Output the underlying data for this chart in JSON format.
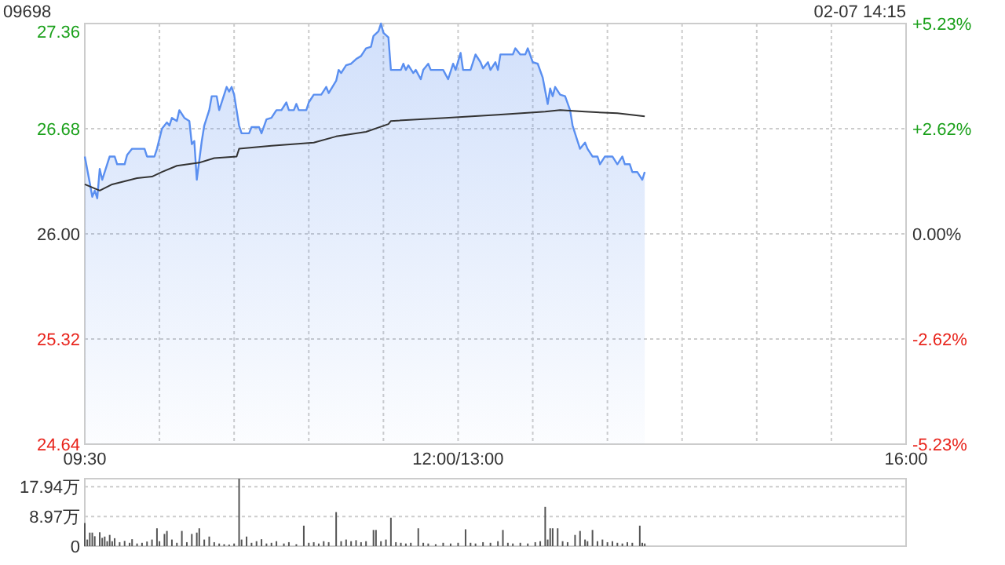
{
  "chart_data": [
    {
      "type": "area",
      "title": "09698",
      "annotations": [
        "02-07 14:15"
      ],
      "grid": true,
      "categories": [
        "09:30",
        null,
        null,
        null,
        null,
        null,
        null,
        null,
        null,
        null,
        null,
        null,
        null,
        null,
        null,
        null,
        null,
        null,
        null,
        null,
        null,
        null,
        null,
        null,
        null,
        null,
        null,
        null,
        null,
        null,
        null,
        null,
        null,
        null,
        null,
        null,
        null,
        null,
        null,
        null,
        null,
        null,
        null,
        null,
        null,
        null,
        null,
        null,
        null,
        null,
        null,
        null,
        null,
        null,
        null,
        null,
        null,
        null,
        null,
        null,
        null,
        null,
        null,
        null,
        null,
        null,
        null,
        null,
        null,
        null,
        null,
        null,
        null,
        null,
        null,
        null,
        null,
        null,
        null,
        null,
        null,
        null,
        null,
        null,
        null,
        null,
        null,
        null,
        null,
        null,
        null,
        null,
        null,
        null,
        null,
        null,
        null,
        null,
        null,
        null,
        null,
        null,
        null,
        null,
        null,
        null,
        null,
        null,
        null,
        null,
        null,
        null,
        null,
        null,
        null,
        null,
        null,
        null,
        null,
        null,
        null,
        null,
        null,
        null,
        null,
        null,
        null,
        null,
        null,
        null,
        null,
        null,
        null,
        null,
        null,
        null,
        null,
        null,
        null,
        null,
        null,
        null,
        null,
        null,
        null,
        null,
        null,
        null,
        null,
        null,
        "12:00/13:00",
        null,
        null,
        null,
        null,
        null,
        null,
        null,
        null,
        null,
        null,
        null,
        null,
        null,
        null,
        null,
        null,
        null,
        null,
        null,
        null,
        null,
        null,
        null,
        null,
        null,
        null,
        null,
        null,
        null,
        null,
        null,
        null,
        null,
        null,
        null,
        null,
        null,
        null,
        null,
        null,
        null,
        null,
        null,
        null,
        null,
        null,
        null,
        null,
        null,
        null,
        null,
        null,
        null,
        null,
        null,
        null,
        null,
        null,
        null,
        null,
        null,
        null,
        null,
        null,
        null,
        null,
        null,
        null,
        null,
        null,
        null,
        null,
        null,
        null,
        null,
        null,
        null,
        null,
        null,
        null,
        null,
        null,
        null,
        null,
        null,
        null,
        null,
        null,
        null,
        null,
        null,
        null,
        null,
        null,
        null,
        null,
        null,
        null,
        null,
        null,
        null,
        null,
        null,
        null,
        null,
        null,
        null,
        null,
        null,
        null,
        null,
        null,
        null,
        null,
        null,
        null,
        null,
        null,
        null,
        null,
        null,
        null,
        null,
        null,
        null,
        null,
        null,
        null,
        null,
        null,
        null,
        null,
        null,
        null,
        null,
        null,
        null,
        null,
        null,
        null,
        null,
        null,
        null,
        null,
        null,
        null,
        null,
        null,
        null,
        null,
        null,
        null,
        null,
        null,
        null,
        null,
        null,
        null,
        null,
        null,
        null,
        null,
        null,
        null,
        null,
        null,
        null,
        null,
        null,
        null,
        null,
        null,
        null,
        null,
        null,
        null,
        null,
        null,
        null,
        "16:00"
      ],
      "ylim": [
        24.64,
        27.36
      ],
      "yticks": [
        {
          "value": 24.64,
          "label": "24.64"
        },
        {
          "value": 25.32,
          "label": "25.32"
        },
        {
          "value": 26,
          "label": "26.00"
        },
        {
          "value": 26.68,
          "label": "26.68"
        },
        {
          "value": 27.36,
          "label": "27.36"
        }
      ],
      "y2lim": [
        -5.23,
        5.23
      ],
      "y2ticks": [
        {
          "value": -5.23,
          "label": "-5.23%"
        },
        {
          "value": -2.62,
          "label": "-2.62%"
        },
        {
          "value": 0,
          "label": "0.00%"
        },
        {
          "value": 2.62,
          "label": "+2.62%"
        },
        {
          "value": 5.23,
          "label": "+5.23%"
        }
      ],
      "series": [
        {
          "color": "#5a8ff0",
          "values": [
            26.5,
            null,
            26.33,
            26.24,
            26.28,
            26.23,
            26.42,
            26.35,
            null,
            null,
            26.5,
            null,
            26.5,
            26.45,
            null,
            null,
            26.45,
            26.51,
            null,
            26.55,
            null,
            null,
            null,
            null,
            26.55,
            26.5,
            null,
            null,
            26.5,
            26.55,
            null,
            26.68,
            null,
            26.72,
            26.7,
            26.75,
            null,
            26.73,
            26.8,
            null,
            26.75,
            null,
            26.73,
            26.58,
            26.6,
            26.35,
            null,
            26.6,
            26.7,
            null,
            26.8,
            26.89,
            null,
            26.89,
            26.8,
            null,
            26.9,
            26.95,
            26.92,
            26.95,
            26.9,
            null,
            26.7,
            26.65,
            null,
            null,
            26.65,
            26.69,
            null,
            null,
            26.69,
            26.65,
            null,
            26.74,
            null,
            26.75,
            null,
            26.8,
            null,
            26.8,
            null,
            26.85,
            26.8,
            null,
            26.8,
            26.84,
            26.8,
            null,
            null,
            26.8,
            26.85,
            null,
            26.9,
            null,
            null,
            26.9,
            null,
            26.95,
            26.91,
            null,
            null,
            26.99,
            27.06,
            27.04,
            null,
            27.09,
            null,
            27.1,
            null,
            27.13,
            null,
            27.15,
            null,
            27.2,
            null,
            27.21,
            27.28,
            null,
            27.31,
            27.36,
            27.3,
            null,
            27.27,
            27.06,
            null,
            null,
            null,
            27.06,
            27.1,
            27.06,
            27.09,
            null,
            27.04,
            27.06,
            null,
            27.0,
            27.06,
            null,
            27.1,
            27.06,
            null,
            null,
            null,
            null,
            27.06,
            null,
            27.0,
            null,
            27.1,
            27.06,
            null,
            27.17,
            27.06,
            null,
            null,
            27.06,
            null,
            27.16,
            null,
            27.11,
            27.07,
            null,
            27.11,
            27.06,
            null,
            27.11,
            27.06,
            27.16,
            null,
            null,
            null,
            null,
            27.16,
            27.2,
            null,
            27.16,
            null,
            27.16,
            27.2,
            null,
            27.11,
            null,
            27.1,
            null,
            27.01,
            null,
            26.84,
            26.94,
            26.89,
            26.95,
            null,
            26.9,
            null,
            26.89,
            null,
            26.8,
            26.7,
            null,
            26.6,
            26.55,
            null,
            26.59,
            26.55,
            null,
            26.5,
            null,
            26.5,
            26.45,
            null,
            26.5,
            null,
            null,
            26.5,
            null,
            26.45,
            null,
            26.5,
            26.45,
            null,
            26.45,
            26.4,
            null,
            26.4,
            null,
            26.35,
            26.4,
            null,
            null,
            null,
            null,
            null,
            null,
            null,
            null,
            null,
            null,
            null,
            null,
            null,
            null,
            null,
            null,
            null,
            null,
            null,
            null,
            null,
            null,
            null,
            null,
            null,
            null,
            null,
            null,
            null,
            null,
            null,
            null,
            null,
            null,
            null,
            null,
            null,
            null,
            null,
            null,
            null,
            null,
            null,
            null,
            null,
            null,
            null,
            null,
            null,
            null,
            null,
            null,
            null,
            null,
            null,
            null,
            null,
            null,
            null,
            null,
            null,
            null,
            null,
            null,
            null,
            null,
            null,
            null,
            null,
            null,
            null,
            null,
            null,
            null,
            null,
            null,
            null,
            null,
            null,
            null,
            null,
            null,
            null,
            null,
            null,
            null,
            null,
            null,
            null,
            null,
            null,
            null,
            null,
            null,
            null,
            null,
            null,
            null,
            null,
            null,
            null,
            null,
            null,
            null,
            null
          ]
        },
        {
          "type": "line",
          "color": "#333333",
          "values": [
            26.32,
            null,
            null,
            null,
            null,
            null,
            26.28,
            null,
            null,
            null,
            null,
            26.32,
            null,
            null,
            null,
            null,
            null,
            null,
            null,
            null,
            null,
            26.36,
            null,
            null,
            null,
            null,
            null,
            26.37,
            null,
            null,
            null,
            26.4,
            null,
            null,
            null,
            null,
            null,
            26.44,
            null,
            null,
            null,
            null,
            null,
            null,
            null,
            null,
            26.46,
            null,
            null,
            null,
            null,
            null,
            26.49,
            null,
            null,
            null,
            null,
            null,
            null,
            null,
            null,
            26.5,
            26.55,
            null,
            null,
            null,
            null,
            null,
            null,
            null,
            null,
            null,
            null,
            null,
            null,
            26.57,
            null,
            null,
            null,
            null,
            null,
            null,
            null,
            null,
            null,
            null,
            null,
            null,
            null,
            null,
            null,
            null,
            26.59,
            null,
            null,
            null,
            null,
            null,
            null,
            null,
            null,
            26.63,
            null,
            null,
            null,
            null,
            null,
            null,
            null,
            null,
            null,
            null,
            null,
            26.66,
            null,
            null,
            null,
            null,
            null,
            null,
            null,
            null,
            26.71,
            26.73,
            null,
            null,
            null,
            null,
            null,
            null,
            null,
            null,
            null,
            null,
            null,
            null,
            null,
            null,
            null,
            null,
            null,
            null,
            null,
            null,
            null,
            26.75,
            null,
            null,
            null,
            null,
            null,
            null,
            null,
            null,
            null,
            null,
            null,
            null,
            null,
            null,
            null,
            null,
            null,
            null,
            null,
            null,
            26.77,
            null,
            null,
            null,
            null,
            null,
            null,
            null,
            null,
            null,
            null,
            null,
            null,
            null,
            null,
            null,
            null,
            null,
            null,
            26.79,
            null,
            null,
            null,
            null,
            null,
            26.8,
            null,
            null,
            null,
            null,
            null,
            null,
            null,
            null,
            null,
            26.79,
            null,
            null,
            null,
            null,
            null,
            null,
            null,
            null,
            null,
            null,
            null,
            null,
            26.78,
            null,
            null,
            null,
            null,
            null,
            null,
            null,
            null,
            null,
            null,
            26.76,
            null,
            null,
            null,
            null,
            null,
            null,
            null,
            null,
            null,
            null,
            null,
            null,
            null,
            null,
            null,
            null,
            null,
            null,
            null,
            null,
            null,
            null,
            null,
            null,
            null,
            null,
            null,
            null,
            null,
            null,
            null,
            null,
            null,
            null,
            null,
            null,
            null,
            null,
            null,
            null,
            null,
            null,
            null,
            null,
            null,
            null,
            null,
            null,
            null,
            null,
            null,
            null,
            null,
            null,
            null,
            null,
            null,
            null,
            null,
            null,
            null,
            null,
            null,
            null,
            null,
            null,
            null,
            null,
            null,
            null,
            null,
            null,
            null,
            null,
            null,
            null,
            null,
            null,
            null,
            null,
            null,
            null,
            null,
            null,
            null,
            null,
            null,
            null,
            null,
            null,
            null,
            null,
            null,
            null,
            null,
            null,
            null,
            null,
            null,
            null,
            null,
            null,
            null,
            null,
            null
          ]
        }
      ]
    },
    {
      "type": "bar",
      "grid": "y",
      "tick_labels": "y",
      "color": "#555555",
      "categories": [
        null,
        null,
        null,
        null,
        null,
        null,
        null,
        null,
        null,
        null,
        null,
        null,
        null,
        null,
        null,
        null,
        null,
        null,
        null,
        null,
        null,
        null,
        null,
        null,
        null,
        null,
        null,
        null,
        null,
        null,
        null,
        null,
        null,
        null,
        null,
        null,
        null,
        null,
        null,
        null,
        null,
        null,
        null,
        null,
        null,
        null,
        null,
        null,
        null,
        null,
        null,
        null,
        null,
        null,
        null,
        null,
        null,
        null,
        null,
        null,
        null,
        null,
        null,
        null,
        null,
        null,
        null,
        null,
        null,
        null,
        null,
        null,
        null,
        null,
        null,
        null,
        null,
        null,
        null,
        null,
        null,
        null,
        null,
        null,
        null,
        null,
        null,
        null,
        null,
        null,
        null,
        null,
        null,
        null,
        null,
        null,
        null,
        null,
        null,
        null,
        null,
        null,
        null,
        null,
        null,
        null,
        null,
        null,
        null,
        null,
        null,
        null,
        null,
        null,
        null,
        null,
        null,
        null,
        null,
        null,
        null,
        null,
        null,
        null,
        null,
        null,
        null,
        null,
        null,
        null,
        null,
        null,
        null,
        null,
        null,
        null,
        null,
        null,
        null,
        null,
        null,
        null,
        null,
        null,
        null,
        null,
        null,
        null,
        null,
        null,
        null,
        null,
        null,
        null,
        null,
        null,
        null,
        null,
        null,
        null,
        null,
        null,
        null,
        null,
        null,
        null,
        null,
        null,
        null,
        null,
        null,
        null,
        null,
        null,
        null,
        null,
        null,
        null,
        null,
        null,
        null,
        null,
        null,
        null,
        null,
        null,
        null,
        null,
        null,
        null,
        null,
        null,
        null,
        null,
        null,
        null,
        null,
        null,
        null,
        null,
        null,
        null,
        null,
        null,
        null,
        null,
        null,
        null,
        null,
        null,
        null,
        null,
        null,
        null,
        null,
        null,
        null,
        null,
        null,
        null,
        null,
        null,
        null,
        null,
        null,
        null,
        null,
        null,
        null,
        null,
        null,
        null,
        null,
        null,
        null,
        null,
        null,
        null,
        null,
        null,
        null,
        null,
        null,
        null,
        null,
        null,
        null,
        null,
        null,
        null,
        null,
        null,
        null,
        null,
        null,
        null,
        null,
        null,
        null,
        null,
        null,
        null,
        null,
        null,
        null,
        null,
        null,
        null,
        null,
        null,
        null,
        null,
        null,
        null,
        null,
        null,
        null,
        null,
        null,
        null,
        null,
        null,
        null,
        null,
        null,
        null,
        null,
        null,
        null,
        null,
        null,
        null,
        null,
        null,
        null,
        null,
        null,
        null,
        null,
        null,
        null,
        null,
        null,
        null,
        null,
        null,
        null,
        null,
        null,
        null,
        null,
        null,
        null,
        null,
        null,
        null,
        null,
        null,
        null,
        null,
        null,
        null,
        null,
        null,
        null,
        null,
        null,
        null,
        null,
        null,
        null
      ],
      "ylim": [
        0,
        20.4
      ],
      "yticks": [
        0,
        {
          "value": 8.97,
          "label": "8.97万"
        },
        {
          "value": 17.94,
          "label": "17.94万"
        }
      ],
      "values": [
        7.0,
        2.0,
        4.1,
        4.1,
        3.0,
        null,
        4.2,
        2.5,
        2.9,
        1.5,
        3.4,
        1.5,
        2.4,
        null,
        1.2,
        null,
        1.6,
        null,
        1.0,
        2.1,
        null,
        0.8,
        null,
        1.0,
        null,
        1.4,
        null,
        2.0,
        null,
        5.4,
        1.5,
        null,
        3.7,
        4.6,
        null,
        2.0,
        null,
        1.0,
        null,
        4.6,
        null,
        1.2,
        null,
        3.7,
        null,
        4.1,
        5.4,
        null,
        2.0,
        null,
        2.9,
        null,
        1.2,
        null,
        0.8,
        null,
        0.6,
        null,
        0.5,
        null,
        0.8,
        null,
        20.4,
        2.0,
        null,
        2.9,
        null,
        1.0,
        null,
        1.5,
        null,
        2.1,
        null,
        0.8,
        null,
        1.0,
        null,
        1.5,
        null,
        null,
        0.8,
        null,
        1.2,
        null,
        null,
        0.6,
        null,
        null,
        6.2,
        null,
        1.0,
        null,
        1.2,
        null,
        0.8,
        null,
        1.5,
        null,
        1.2,
        null,
        null,
        10.3,
        null,
        1.5,
        null,
        2.0,
        null,
        1.5,
        null,
        1.8,
        null,
        1.2,
        null,
        1.5,
        null,
        null,
        4.9,
        4.9,
        null,
        1.5,
        null,
        2.0,
        null,
        8.6,
        null,
        1.2,
        null,
        1.0,
        null,
        0.8,
        null,
        1.0,
        null,
        null,
        5.4,
        null,
        1.0,
        null,
        0.8,
        null,
        null,
        0.6,
        null,
        null,
        1.0,
        null,
        null,
        0.8,
        null,
        null,
        1.0,
        null,
        null,
        5.1,
        null,
        1.0,
        null,
        0.8,
        null,
        null,
        1.2,
        null,
        null,
        1.0,
        null,
        null,
        1.5,
        null,
        4.9,
        null,
        1.0,
        null,
        0.8,
        null,
        null,
        1.0,
        null,
        null,
        0.8,
        null,
        null,
        1.2,
        null,
        1.5,
        null,
        11.9,
        2.0,
        5.4,
        5.4,
        null,
        5.4,
        null,
        1.5,
        null,
        1.2,
        null,
        null,
        3.4,
        null,
        4.6,
        null,
        2.0,
        1.5,
        null,
        4.9,
        null,
        1.5,
        null,
        2.0,
        null,
        1.2,
        null,
        1.5,
        null,
        1.0,
        null,
        0.8,
        null,
        1.2,
        null,
        1.0,
        null,
        null,
        6.2,
        1.0,
        0.8,
        null,
        null,
        null,
        null,
        null,
        null,
        null,
        null,
        null,
        null,
        null,
        null,
        null,
        null,
        null,
        null,
        null,
        null,
        null,
        null,
        null,
        null,
        null,
        null,
        null,
        null,
        null,
        null,
        null,
        null,
        null,
        null,
        null,
        null,
        null,
        null,
        null,
        null,
        null,
        null,
        null,
        null,
        null,
        null,
        null,
        null,
        null,
        null,
        null,
        null,
        null,
        null,
        null,
        null,
        null,
        null,
        null,
        null,
        null,
        null,
        null,
        null,
        null,
        null,
        null,
        null,
        null,
        null,
        null,
        null,
        null,
        null,
        null,
        null,
        null,
        null,
        null,
        null,
        null,
        null,
        null,
        null,
        null,
        null,
        null,
        null,
        null,
        null,
        null,
        null,
        null,
        null,
        null,
        null,
        null,
        null,
        null,
        null,
        null,
        null,
        null,
        null,
        null,
        null,
        null
      ]
    }
  ]
}
